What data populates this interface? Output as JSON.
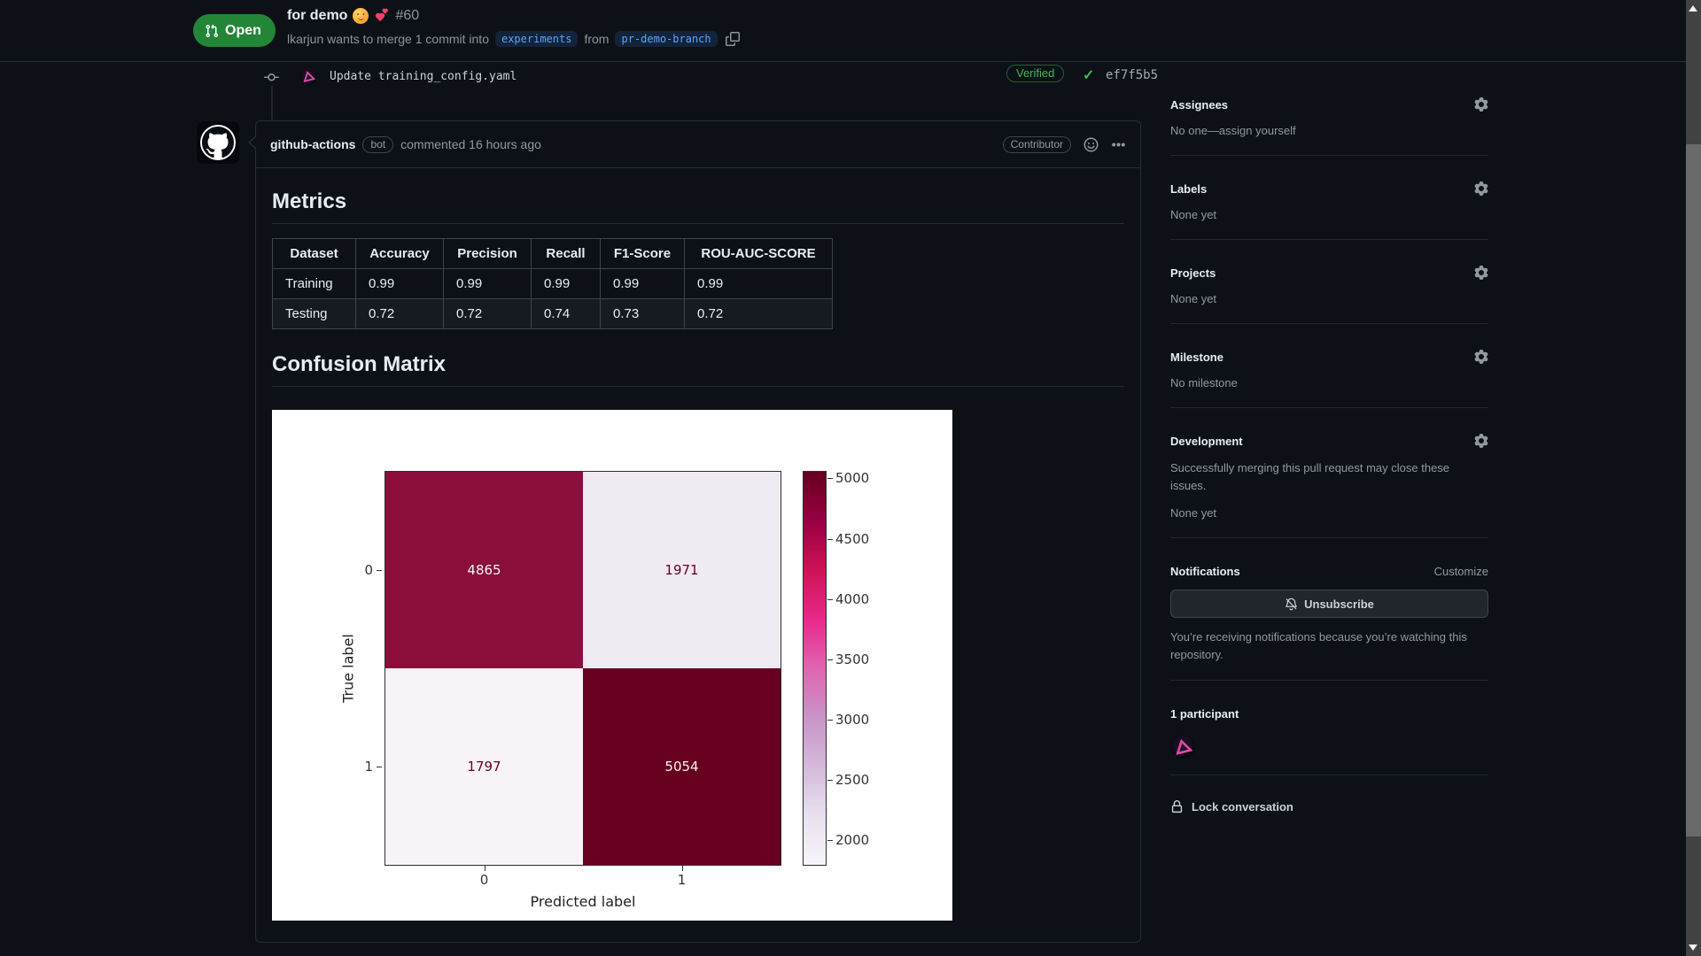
{
  "header": {
    "status_label": "Open",
    "title": "for demo",
    "title_emojis": [
      "hugging-face-emoji",
      "two-hearts-emoji"
    ],
    "pr_number": "#60",
    "merge_text_before": "lkarjun wants to merge 1 commit into",
    "base_branch": "experiments",
    "merge_text_from": "from",
    "head_branch": "pr-demo-branch"
  },
  "commit": {
    "message": "Update training_config.yaml",
    "verified_label": "Verified",
    "sha": "ef7f5b5"
  },
  "comment": {
    "author": "github-actions",
    "author_type_badge": "bot",
    "meta_text": "commented 16 hours ago",
    "association_badge": "Contributor",
    "metrics": {
      "heading": "Metrics",
      "columns": [
        "Dataset",
        "Accuracy",
        "Precision",
        "Recall",
        "F1-Score",
        "ROU-AUC-SCORE"
      ],
      "rows": [
        [
          "Training",
          "0.99",
          "0.99",
          "0.99",
          "0.99",
          "0.99"
        ],
        [
          "Testing",
          "0.72",
          "0.72",
          "0.74",
          "0.73",
          "0.72"
        ]
      ]
    },
    "confusion_heading": "Confusion Matrix"
  },
  "chart_data": {
    "type": "heatmap",
    "title": "",
    "xlabel": "Predicted label",
    "ylabel": "True label",
    "x": [
      "0",
      "1"
    ],
    "y": [
      "0",
      "1"
    ],
    "matrix": [
      [
        4865,
        1971
      ],
      [
        1797,
        5054
      ]
    ],
    "vmin": 1797,
    "vmax": 5054,
    "colormap": "PuRd",
    "colorbar_ticks": [
      5000,
      4500,
      4000,
      3500,
      3000,
      2500,
      2000
    ],
    "cell_colors": [
      [
        "#8b0e3c",
        "#f0eaf3"
      ],
      [
        "#f7f3f8",
        "#67001f"
      ]
    ],
    "cell_text_colors": [
      [
        "#f7f4f9",
        "#67001f"
      ],
      [
        "#67001f",
        "#f7f4f9"
      ]
    ]
  },
  "sidebar": {
    "assignees": {
      "title": "Assignees",
      "body": "No one—assign yourself"
    },
    "labels": {
      "title": "Labels",
      "body": "None yet"
    },
    "projects": {
      "title": "Projects",
      "body": "None yet"
    },
    "milestone": {
      "title": "Milestone",
      "body": "No milestone"
    },
    "development": {
      "title": "Development",
      "body": "Successfully merging this pull request may close these issues.",
      "body2": "None yet"
    },
    "notifications": {
      "title": "Notifications",
      "customize_label": "Customize",
      "button_label": "Unsubscribe",
      "note": "You’re receiving notifications because you’re watching this repository."
    },
    "participants": {
      "title": "1 participant"
    },
    "lock": {
      "label": "Lock conversation"
    }
  },
  "colors": {
    "page_background": "#0d1117",
    "open_badge_green": "#238636",
    "verified_green": "#3fb950",
    "branch_label_blue": "#58a6ff",
    "figure_background": "#ffffff"
  }
}
